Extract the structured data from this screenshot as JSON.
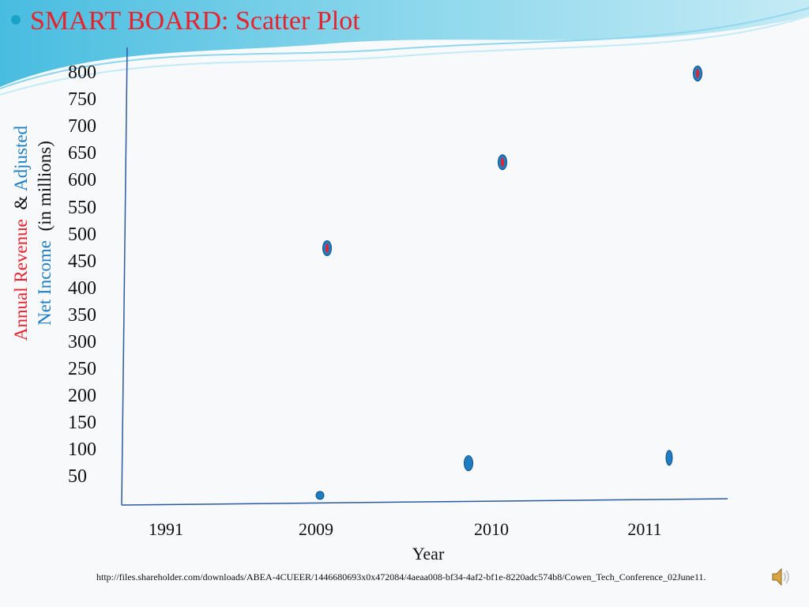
{
  "slide": {
    "title": "SMART BOARD: Scatter Plot",
    "source_url": "http://files.shareholder.com/downloads/ABEA-4CUEER/1446680693x0x472084/4aeaa008-bf34-4af2-bf1e-8220adc574b8/Cowen_Tech_Conference_02June11.",
    "icons": {
      "title_bullet": "bullet-dot-icon",
      "speaker": "speaker-icon"
    }
  },
  "colors": {
    "revenue": "#e8222c",
    "net_income": "#1f7ec2",
    "axis": "#2b5aa3",
    "bullet": "#1aa3c8"
  },
  "chart_data": {
    "type": "scatter",
    "title": "",
    "ylabel_parts": [
      "Annual Revenue",
      "&",
      "Adjusted",
      "Net Income",
      "(in millions)"
    ],
    "xlabel": "Year",
    "x_ticks": [
      "1991",
      "2009",
      "2010",
      "2011"
    ],
    "y_ticks": [
      "800",
      "750",
      "700",
      "650",
      "600",
      "550",
      "500",
      "450",
      "400",
      "350",
      "300",
      "250",
      "200",
      "150",
      "100",
      "50"
    ],
    "ylim": [
      0,
      800
    ],
    "grid": false,
    "series": [
      {
        "name": "Annual Revenue",
        "marker": "red-on-blue",
        "points": [
          {
            "x": "2009",
            "y": 475
          },
          {
            "x": "2010",
            "y": 635
          },
          {
            "x": "2011",
            "y": 800
          }
        ]
      },
      {
        "name": "Adjusted Net Income",
        "marker": "blue",
        "points": [
          {
            "x": "2009",
            "y": 15
          },
          {
            "x": "2010",
            "y": 75
          },
          {
            "x": "2011",
            "y": 85
          }
        ]
      }
    ]
  }
}
